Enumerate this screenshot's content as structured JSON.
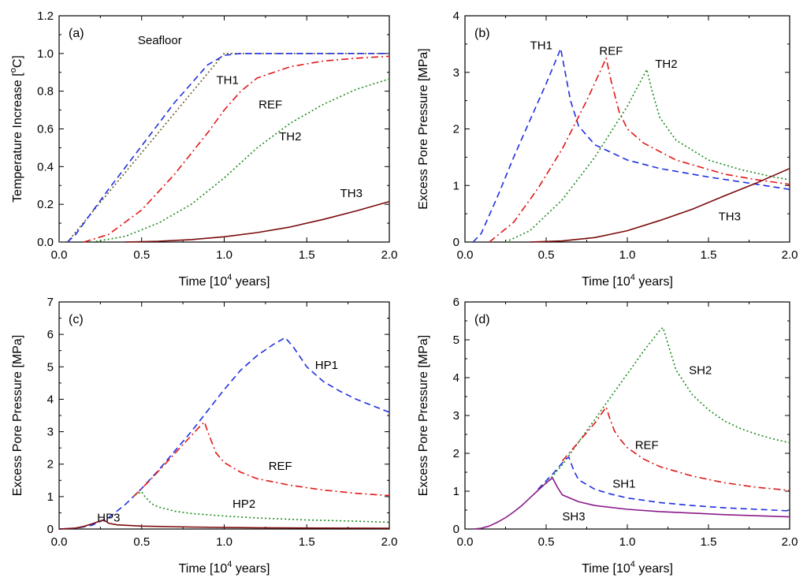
{
  "colors": {
    "blue": "#1f2fe0",
    "red": "#e01818",
    "green": "#1a8a1a",
    "maroon": "#7a0a0a",
    "purple": "#8a1a8a",
    "olive": "#6b5a1e"
  },
  "chart_data": [
    {
      "panel": "(a)",
      "type": "line",
      "xlabel_parts": [
        "Time [10",
        "4",
        " years]"
      ],
      "ylabel_parts": [
        "Temperature Increase [",
        "o",
        "C]"
      ],
      "xlim": [
        0,
        2.0
      ],
      "ylim": [
        0,
        1.2
      ],
      "xticks": [
        "0.0",
        "0.5",
        "1.0",
        "1.5",
        "2.0"
      ],
      "yticks": [
        "0.0",
        "0.2",
        "0.4",
        "0.6",
        "0.8",
        "1.0",
        "1.2"
      ],
      "series": [
        {
          "name": "Seafloor",
          "color": "olive",
          "dash": "dot",
          "x": [
            0.0,
            0.05,
            1.0,
            2.0
          ],
          "y": [
            0.0,
            0.0,
            1.0,
            1.0
          ]
        },
        {
          "name": "TH1",
          "color": "blue",
          "dash": "dash",
          "x": [
            0.05,
            0.1,
            0.3,
            0.5,
            0.7,
            0.9,
            1.0,
            1.1,
            1.3,
            1.6,
            2.0
          ],
          "y": [
            0.0,
            0.04,
            0.28,
            0.51,
            0.74,
            0.94,
            0.99,
            1.0,
            1.0,
            1.0,
            1.0
          ]
        },
        {
          "name": "REF",
          "color": "red",
          "dash": "dashdot",
          "x": [
            0.15,
            0.3,
            0.5,
            0.7,
            0.9,
            1.0,
            1.1,
            1.2,
            1.4,
            1.6,
            1.8,
            2.0
          ],
          "y": [
            0.0,
            0.04,
            0.17,
            0.36,
            0.58,
            0.7,
            0.8,
            0.87,
            0.93,
            0.96,
            0.975,
            0.985
          ]
        },
        {
          "name": "TH2",
          "color": "green",
          "dash": "dot",
          "x": [
            0.2,
            0.4,
            0.6,
            0.8,
            1.0,
            1.2,
            1.4,
            1.6,
            1.8,
            2.0
          ],
          "y": [
            0.0,
            0.03,
            0.1,
            0.2,
            0.34,
            0.5,
            0.63,
            0.73,
            0.81,
            0.865
          ]
        },
        {
          "name": "TH3",
          "color": "maroon",
          "dash": "solid",
          "x": [
            0.4,
            0.6,
            0.8,
            1.0,
            1.2,
            1.4,
            1.6,
            1.8,
            2.0
          ],
          "y": [
            0.0,
            0.004,
            0.013,
            0.028,
            0.05,
            0.08,
            0.12,
            0.165,
            0.215
          ]
        }
      ],
      "annotations": [
        {
          "text": "Seafloor",
          "x": 0.61,
          "y": 1.07
        },
        {
          "text": "TH1",
          "x": 1.02,
          "y": 0.86
        },
        {
          "text": "REF",
          "x": 1.28,
          "y": 0.73
        },
        {
          "text": "TH2",
          "x": 1.4,
          "y": 0.56
        },
        {
          "text": "TH3",
          "x": 1.77,
          "y": 0.26
        }
      ]
    },
    {
      "panel": "(b)",
      "type": "line",
      "xlabel_parts": [
        "Time [10",
        "4",
        " years]"
      ],
      "ylabel_parts": [
        "Excess Pore Pressure [MPa]"
      ],
      "xlim": [
        0,
        2.0
      ],
      "ylim": [
        0,
        4
      ],
      "xticks": [
        "0.0",
        "0.5",
        "1.0",
        "1.5",
        "2.0"
      ],
      "yticks": [
        "0",
        "1",
        "2",
        "3",
        "4"
      ],
      "series": [
        {
          "name": "TH1",
          "color": "blue",
          "dash": "dash",
          "x": [
            0.05,
            0.1,
            0.2,
            0.3,
            0.4,
            0.5,
            0.59,
            0.65,
            0.7,
            0.8,
            1.0,
            1.2,
            1.5,
            1.8,
            2.0
          ],
          "y": [
            0.0,
            0.15,
            0.8,
            1.5,
            2.15,
            2.8,
            3.42,
            2.5,
            2.05,
            1.72,
            1.45,
            1.3,
            1.15,
            1.02,
            0.93
          ]
        },
        {
          "name": "REF",
          "color": "red",
          "dash": "dashdot",
          "x": [
            0.15,
            0.3,
            0.45,
            0.6,
            0.75,
            0.87,
            0.9,
            0.95,
            1.0,
            1.1,
            1.3,
            1.6,
            1.8,
            2.0
          ],
          "y": [
            0.0,
            0.35,
            0.95,
            1.65,
            2.5,
            3.25,
            2.85,
            2.3,
            2.0,
            1.75,
            1.45,
            1.2,
            1.1,
            1.02
          ]
        },
        {
          "name": "TH2",
          "color": "green",
          "dash": "dot",
          "x": [
            0.25,
            0.4,
            0.6,
            0.8,
            1.0,
            1.12,
            1.15,
            1.2,
            1.3,
            1.5,
            1.7,
            1.9,
            2.0
          ],
          "y": [
            0.0,
            0.2,
            0.75,
            1.5,
            2.4,
            3.05,
            2.7,
            2.2,
            1.8,
            1.45,
            1.28,
            1.15,
            1.1
          ]
        },
        {
          "name": "TH3",
          "color": "maroon",
          "dash": "solid",
          "x": [
            0.4,
            0.6,
            0.8,
            1.0,
            1.2,
            1.4,
            1.6,
            1.8,
            2.0
          ],
          "y": [
            0.0,
            0.02,
            0.08,
            0.2,
            0.38,
            0.58,
            0.82,
            1.05,
            1.3
          ]
        }
      ],
      "annotations": [
        {
          "text": "TH1",
          "x": 0.47,
          "y": 3.48
        },
        {
          "text": "REF",
          "x": 0.9,
          "y": 3.38
        },
        {
          "text": "TH2",
          "x": 1.24,
          "y": 3.15
        },
        {
          "text": "TH3",
          "x": 1.63,
          "y": 0.45
        }
      ]
    },
    {
      "panel": "(c)",
      "type": "line",
      "xlabel_parts": [
        "Time [10",
        "4",
        " years]"
      ],
      "ylabel_parts": [
        "Excess Pore Pressure [MPa]"
      ],
      "xlim": [
        0,
        2.0
      ],
      "ylim": [
        0,
        7
      ],
      "xticks": [
        "0.0",
        "0.5",
        "1.0",
        "1.5",
        "2.0"
      ],
      "yticks": [
        "0",
        "1",
        "2",
        "3",
        "4",
        "5",
        "6",
        "7"
      ],
      "series": [
        {
          "name": "HP1",
          "color": "blue",
          "dash": "dash",
          "x": [
            0.0,
            0.1,
            0.2,
            0.3,
            0.4,
            0.5,
            0.6,
            0.7,
            0.8,
            0.9,
            1.0,
            1.1,
            1.2,
            1.3,
            1.37,
            1.42,
            1.5,
            1.6,
            1.7,
            1.8,
            1.9,
            2.0
          ],
          "y": [
            0.0,
            0.02,
            0.12,
            0.35,
            0.75,
            1.25,
            1.8,
            2.4,
            3.0,
            3.65,
            4.3,
            4.9,
            5.35,
            5.7,
            5.9,
            5.6,
            5.0,
            4.55,
            4.25,
            4.0,
            3.8,
            3.6
          ]
        },
        {
          "name": "REF",
          "color": "red",
          "dash": "dashdot",
          "x": [
            0.45,
            0.55,
            0.65,
            0.75,
            0.85,
            0.88,
            0.9,
            0.95,
            1.0,
            1.1,
            1.2,
            1.4,
            1.6,
            1.8,
            2.0
          ],
          "y": [
            1.0,
            1.5,
            2.05,
            2.6,
            3.15,
            3.3,
            3.0,
            2.35,
            2.05,
            1.75,
            1.55,
            1.35,
            1.2,
            1.1,
            1.03
          ]
        },
        {
          "name": "HP2",
          "color": "green",
          "dash": "dot",
          "x": [
            0.46,
            0.5,
            0.52,
            0.56,
            0.6,
            0.7,
            0.8,
            1.0,
            1.2,
            1.5,
            1.8,
            2.0
          ],
          "y": [
            1.05,
            1.15,
            1.0,
            0.78,
            0.68,
            0.55,
            0.48,
            0.4,
            0.34,
            0.28,
            0.24,
            0.21
          ]
        },
        {
          "name": "HP3",
          "color": "maroon",
          "dash": "solid",
          "x": [
            0.0,
            0.1,
            0.15,
            0.2,
            0.25,
            0.27,
            0.3,
            0.35,
            0.5,
            0.8,
            1.2,
            1.6,
            2.0
          ],
          "y": [
            0.0,
            0.03,
            0.08,
            0.16,
            0.25,
            0.28,
            0.18,
            0.13,
            0.09,
            0.06,
            0.04,
            0.03,
            0.025
          ]
        }
      ],
      "annotations": [
        {
          "text": "HP1",
          "x": 1.62,
          "y": 5.05
        },
        {
          "text": "REF",
          "x": 1.34,
          "y": 1.95
        },
        {
          "text": "HP2",
          "x": 1.12,
          "y": 0.78
        },
        {
          "text": "HP3",
          "x": 0.3,
          "y": 0.35
        }
      ]
    },
    {
      "panel": "(d)",
      "type": "line",
      "xlabel_parts": [
        "Time [10",
        "4",
        " years]"
      ],
      "ylabel_parts": [
        "Excess Pore Pressure [MPa]"
      ],
      "xlim": [
        0,
        2.0
      ],
      "ylim": [
        0,
        6
      ],
      "xticks": [
        "0.0",
        "0.5",
        "1.0",
        "1.5",
        "2.0"
      ],
      "yticks": [
        "0",
        "1",
        "2",
        "3",
        "4",
        "5",
        "6"
      ],
      "series": [
        {
          "name": "SH2",
          "color": "green",
          "dash": "dot",
          "x": [
            0.5,
            0.6,
            0.7,
            0.8,
            0.9,
            1.0,
            1.1,
            1.2,
            1.22,
            1.25,
            1.3,
            1.4,
            1.5,
            1.6,
            1.7,
            1.8,
            1.9,
            2.0
          ],
          "y": [
            1.2,
            1.7,
            2.3,
            2.9,
            3.5,
            4.1,
            4.7,
            5.25,
            5.32,
            4.9,
            4.2,
            3.55,
            3.15,
            2.85,
            2.65,
            2.5,
            2.38,
            2.28
          ]
        },
        {
          "name": "REF",
          "color": "red",
          "dash": "dashdot",
          "x": [
            0.6,
            0.7,
            0.8,
            0.87,
            0.89,
            0.92,
            0.95,
            1.0,
            1.1,
            1.2,
            1.4,
            1.6,
            1.8,
            2.0
          ],
          "y": [
            1.8,
            2.3,
            2.8,
            3.22,
            2.95,
            2.6,
            2.4,
            2.15,
            1.85,
            1.65,
            1.4,
            1.22,
            1.1,
            1.02
          ]
        },
        {
          "name": "SH1",
          "color": "blue",
          "dash": "dash",
          "x": [
            0.45,
            0.55,
            0.62,
            0.64,
            0.67,
            0.7,
            0.8,
            0.9,
            1.0,
            1.2,
            1.4,
            1.6,
            1.8,
            2.0
          ],
          "y": [
            1.05,
            1.5,
            1.85,
            1.9,
            1.55,
            1.3,
            1.05,
            0.92,
            0.82,
            0.7,
            0.62,
            0.56,
            0.52,
            0.48
          ]
        },
        {
          "name": "SH3",
          "color": "purple",
          "dash": "solid",
          "x": [
            0.05,
            0.1,
            0.15,
            0.2,
            0.25,
            0.3,
            0.35,
            0.4,
            0.45,
            0.5,
            0.54,
            0.57,
            0.6,
            0.7,
            0.8,
            1.0,
            1.2,
            1.4,
            1.6,
            1.8,
            2.0
          ],
          "y": [
            0.0,
            0.02,
            0.08,
            0.18,
            0.3,
            0.45,
            0.62,
            0.82,
            1.02,
            1.22,
            1.35,
            1.1,
            0.9,
            0.72,
            0.62,
            0.52,
            0.46,
            0.42,
            0.38,
            0.35,
            0.32
          ]
        }
      ],
      "annotations": [
        {
          "text": "SH2",
          "x": 1.45,
          "y": 4.2
        },
        {
          "text": "REF",
          "x": 1.12,
          "y": 2.22
        },
        {
          "text": "SH1",
          "x": 0.98,
          "y": 1.2
        },
        {
          "text": "SH3",
          "x": 0.67,
          "y": 0.33
        }
      ]
    }
  ]
}
